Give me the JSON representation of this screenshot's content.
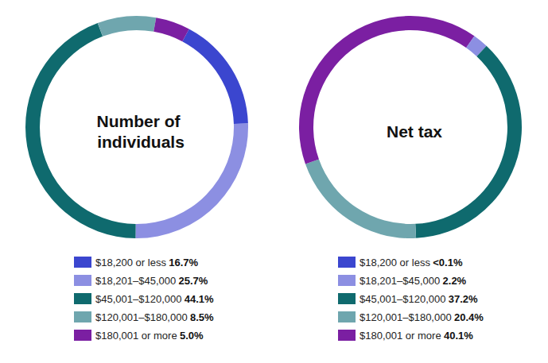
{
  "chart_data": [
    {
      "type": "pie",
      "title": "Number of individuals",
      "categories": [
        "$18,200 or less",
        "$18,201–$45,000",
        "$45,001–$120,000",
        "$120,001–$180,000",
        "$180,001 or more"
      ],
      "values": [
        16.7,
        25.7,
        44.1,
        8.5,
        5.0
      ],
      "value_labels": [
        "16.7%",
        "25.7%",
        "44.1%",
        "8.5%",
        "5.0%"
      ],
      "colors": [
        "#3b46cf",
        "#8c8fe2",
        "#0f6a6e",
        "#6fa6ae",
        "#7b1fa2"
      ],
      "legend": "bottom",
      "data_labels": false
    },
    {
      "type": "pie",
      "title": "Net tax",
      "categories": [
        "$18,200 or less",
        "$18,201–$45,000",
        "$45,001–$120,000",
        "$120,001–$180,000",
        "$180,001 or more"
      ],
      "values": [
        0.05,
        2.2,
        37.2,
        20.4,
        40.1
      ],
      "value_labels": [
        "<0.1%",
        "2.2%",
        "37.2%",
        "20.4%",
        "40.1%"
      ],
      "colors": [
        "#3b46cf",
        "#8c8fe2",
        "#0f6a6e",
        "#6fa6ae",
        "#7b1fa2"
      ],
      "legend": "bottom",
      "data_labels": false
    }
  ]
}
